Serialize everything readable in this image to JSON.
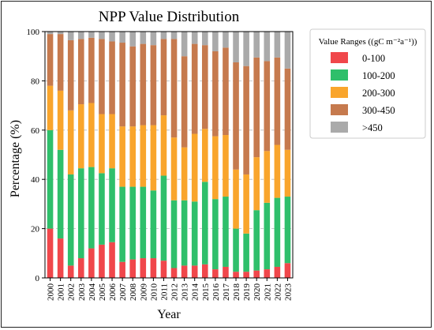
{
  "chart_data": {
    "type": "bar",
    "stacked": true,
    "title": "NPP Value Distribution",
    "xlabel": "Year",
    "ylabel": "Percentage (%)",
    "ylim": [
      0,
      100
    ],
    "yticks": [
      "0",
      "20",
      "40",
      "60",
      "80",
      "100"
    ],
    "grid": "y-dashed",
    "legend": {
      "title": "Value Ranges ((gC m⁻²a⁻¹))",
      "placement": "right-outside"
    },
    "categories": [
      "2000",
      "2001",
      "2002",
      "2003",
      "2004",
      "2005",
      "2006",
      "2007",
      "2008",
      "2009",
      "2010",
      "2011",
      "2012",
      "2013",
      "2014",
      "2015",
      "2016",
      "2017",
      "2018",
      "2019",
      "2020",
      "2021",
      "2022",
      "2023"
    ],
    "series": [
      {
        "name": "0-100",
        "color": "#f0474b",
        "values": [
          20,
          16,
          5,
          8,
          12,
          13.5,
          14.5,
          6.5,
          7.5,
          8,
          8,
          7,
          4,
          5,
          5,
          5.5,
          3.5,
          4.5,
          2.5,
          2.5,
          3,
          3.5,
          4.5,
          6
        ]
      },
      {
        "name": "100-200",
        "color": "#2fbf6b",
        "values": [
          40,
          36,
          37,
          36.5,
          33,
          29,
          30,
          30.5,
          29.5,
          29,
          27.5,
          34.5,
          27.5,
          26.5,
          26,
          33.5,
          28.5,
          28.5,
          17.5,
          15.5,
          24.5,
          27,
          28,
          27
        ]
      },
      {
        "name": "200-300",
        "color": "#f9a52c",
        "values": [
          18,
          24,
          26,
          26,
          26,
          24,
          22,
          24.5,
          24.5,
          25,
          26.5,
          24.5,
          25.5,
          21.5,
          27.5,
          21.5,
          25.5,
          25,
          24,
          24,
          21.5,
          21,
          21.5,
          19
        ]
      },
      {
        "name": "300-450",
        "color": "#c67a4e",
        "values": [
          21,
          23,
          28.5,
          26.5,
          26.5,
          30.5,
          29.5,
          34,
          32.5,
          33,
          32.5,
          31,
          40,
          37,
          36.5,
          34,
          34.5,
          35.5,
          43.5,
          44,
          40.5,
          36.5,
          35.5,
          33
        ]
      },
      {
        "name": ">450",
        "color": "#aaaaaa",
        "values": [
          1,
          1,
          3.5,
          3,
          2.5,
          3,
          4,
          4.5,
          6,
          5,
          5.5,
          3,
          3,
          10,
          5,
          5.5,
          8,
          6.5,
          12.5,
          14,
          10.5,
          12,
          10.5,
          15
        ]
      }
    ]
  }
}
